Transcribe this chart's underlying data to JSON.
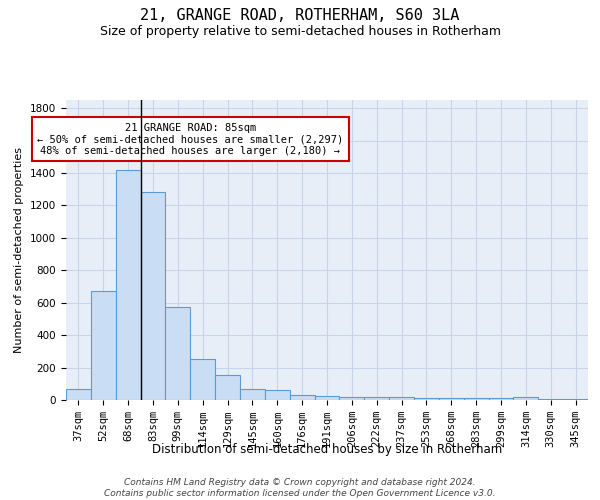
{
  "title1": "21, GRANGE ROAD, ROTHERHAM, S60 3LA",
  "title2": "Size of property relative to semi-detached houses in Rotherham",
  "xlabel": "Distribution of semi-detached houses by size in Rotherham",
  "ylabel": "Number of semi-detached properties",
  "categories": [
    "37sqm",
    "52sqm",
    "68sqm",
    "83sqm",
    "99sqm",
    "114sqm",
    "129sqm",
    "145sqm",
    "160sqm",
    "176sqm",
    "191sqm",
    "206sqm",
    "222sqm",
    "237sqm",
    "253sqm",
    "268sqm",
    "283sqm",
    "299sqm",
    "314sqm",
    "330sqm",
    "345sqm"
  ],
  "values": [
    65,
    670,
    1420,
    1280,
    575,
    250,
    155,
    65,
    60,
    30,
    25,
    20,
    17,
    16,
    13,
    13,
    12,
    12,
    20,
    5,
    5
  ],
  "bar_color": "#c9ddf5",
  "bar_edge_color": "#5b9bd5",
  "highlight_index": 3,
  "highlight_line_color": "#000000",
  "annotation_text": "21 GRANGE ROAD: 85sqm\n← 50% of semi-detached houses are smaller (2,297)\n48% of semi-detached houses are larger (2,180) →",
  "annotation_box_color": "#ffffff",
  "annotation_box_edge": "#cc0000",
  "ylim": [
    0,
    1850
  ],
  "yticks": [
    0,
    200,
    400,
    600,
    800,
    1000,
    1200,
    1400,
    1600,
    1800
  ],
  "grid_color": "#c8d4e8",
  "background_color": "#e8eef8",
  "footnote": "Contains HM Land Registry data © Crown copyright and database right 2024.\nContains public sector information licensed under the Open Government Licence v3.0.",
  "title1_fontsize": 11,
  "title2_fontsize": 9,
  "xlabel_fontsize": 8.5,
  "ylabel_fontsize": 8,
  "tick_fontsize": 7.5,
  "annot_fontsize": 7.5,
  "footnote_fontsize": 6.5
}
